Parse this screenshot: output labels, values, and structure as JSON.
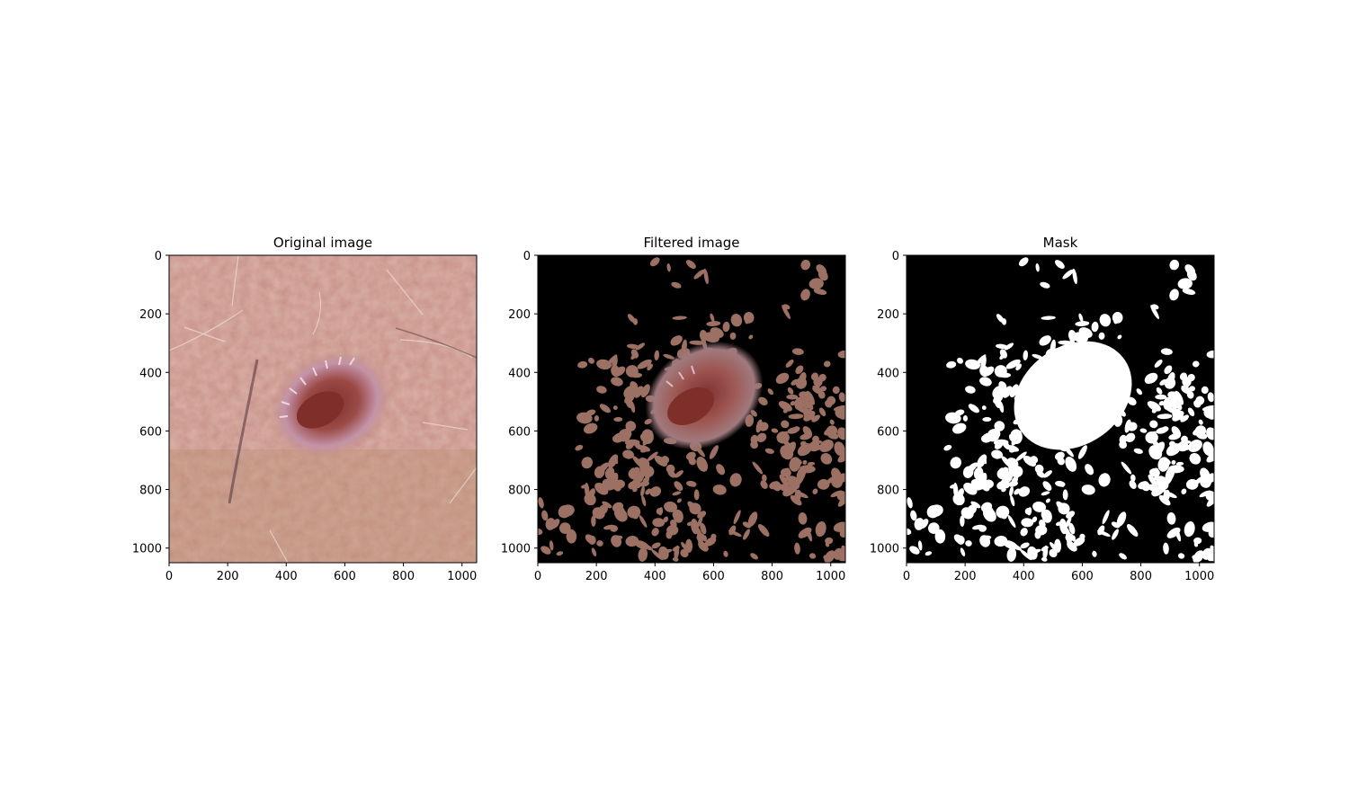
{
  "figure": {
    "panels": [
      {
        "id": "original",
        "title": "Original image",
        "x_ticks": [
          "0",
          "200",
          "400",
          "600",
          "800",
          "1000"
        ],
        "y_ticks": [
          "0",
          "200",
          "400",
          "600",
          "800",
          "1000"
        ]
      },
      {
        "id": "filtered",
        "title": "Filtered image",
        "x_ticks": [
          "0",
          "200",
          "400",
          "600",
          "800",
          "1000"
        ],
        "y_ticks": [
          "0",
          "200",
          "400",
          "600",
          "800",
          "1000"
        ]
      },
      {
        "id": "mask",
        "title": "Mask",
        "x_ticks": [
          "0",
          "200",
          "400",
          "600",
          "800",
          "1000"
        ],
        "y_ticks": [
          "0",
          "200",
          "400",
          "600",
          "800",
          "1000"
        ]
      }
    ],
    "axis_range": [
      0,
      1050
    ],
    "colors": {
      "skin": "#c08a7e",
      "skin_light": "#d9a49b",
      "skin_dark": "#a77468",
      "lesion_rim": "#b9849a",
      "lesion_core": "#8e3b37",
      "filtered_patch": "#9c7063",
      "mask_on": "#ffffff",
      "mask_off": "#000000"
    }
  }
}
